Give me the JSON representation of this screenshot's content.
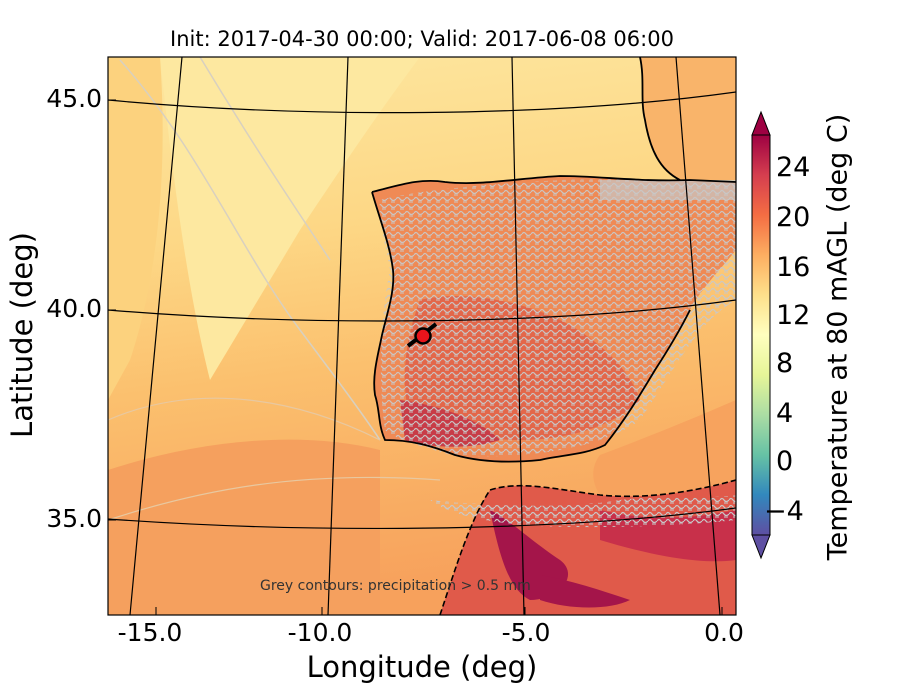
{
  "figure": {
    "title": "Init: 2017-04-30 00:00; Valid: 2017-06-08 06:00",
    "xlabel": "Longitude (deg)",
    "ylabel": "Latitude (deg)",
    "xticks": [
      "-15.0",
      "-10.0",
      "-5.0",
      "0.0"
    ],
    "yticks": [
      "45.0",
      "40.0",
      "35.0"
    ],
    "note": "Grey contours: precipitation > 0.5 mm",
    "marker": "red circle station marker near 39.4N, 7.7W"
  },
  "colorbar": {
    "label": "Temperature at 80 mAGL (deg C)",
    "ticks": [
      "24",
      "20",
      "16",
      "12",
      "8",
      "4",
      "0",
      "−4"
    ],
    "range_deg_c": [
      -6,
      28
    ],
    "colormap": "Spectral_r",
    "colors": [
      "#5e4fa2",
      "#3288bd",
      "#66c2a5",
      "#abdda4",
      "#e6f598",
      "#ffffbf",
      "#fee08b",
      "#fdae61",
      "#f46d43",
      "#d53e4f",
      "#9e0142"
    ]
  },
  "colors": {
    "sea_north": "#fde08a",
    "sea_mid": "#fcc171",
    "sea_south": "#f7a25e",
    "land": "#f08a56",
    "land_hot": "#d94b47",
    "hot_core": "#a4154a",
    "precip_contours": "#c8c8c8"
  }
}
